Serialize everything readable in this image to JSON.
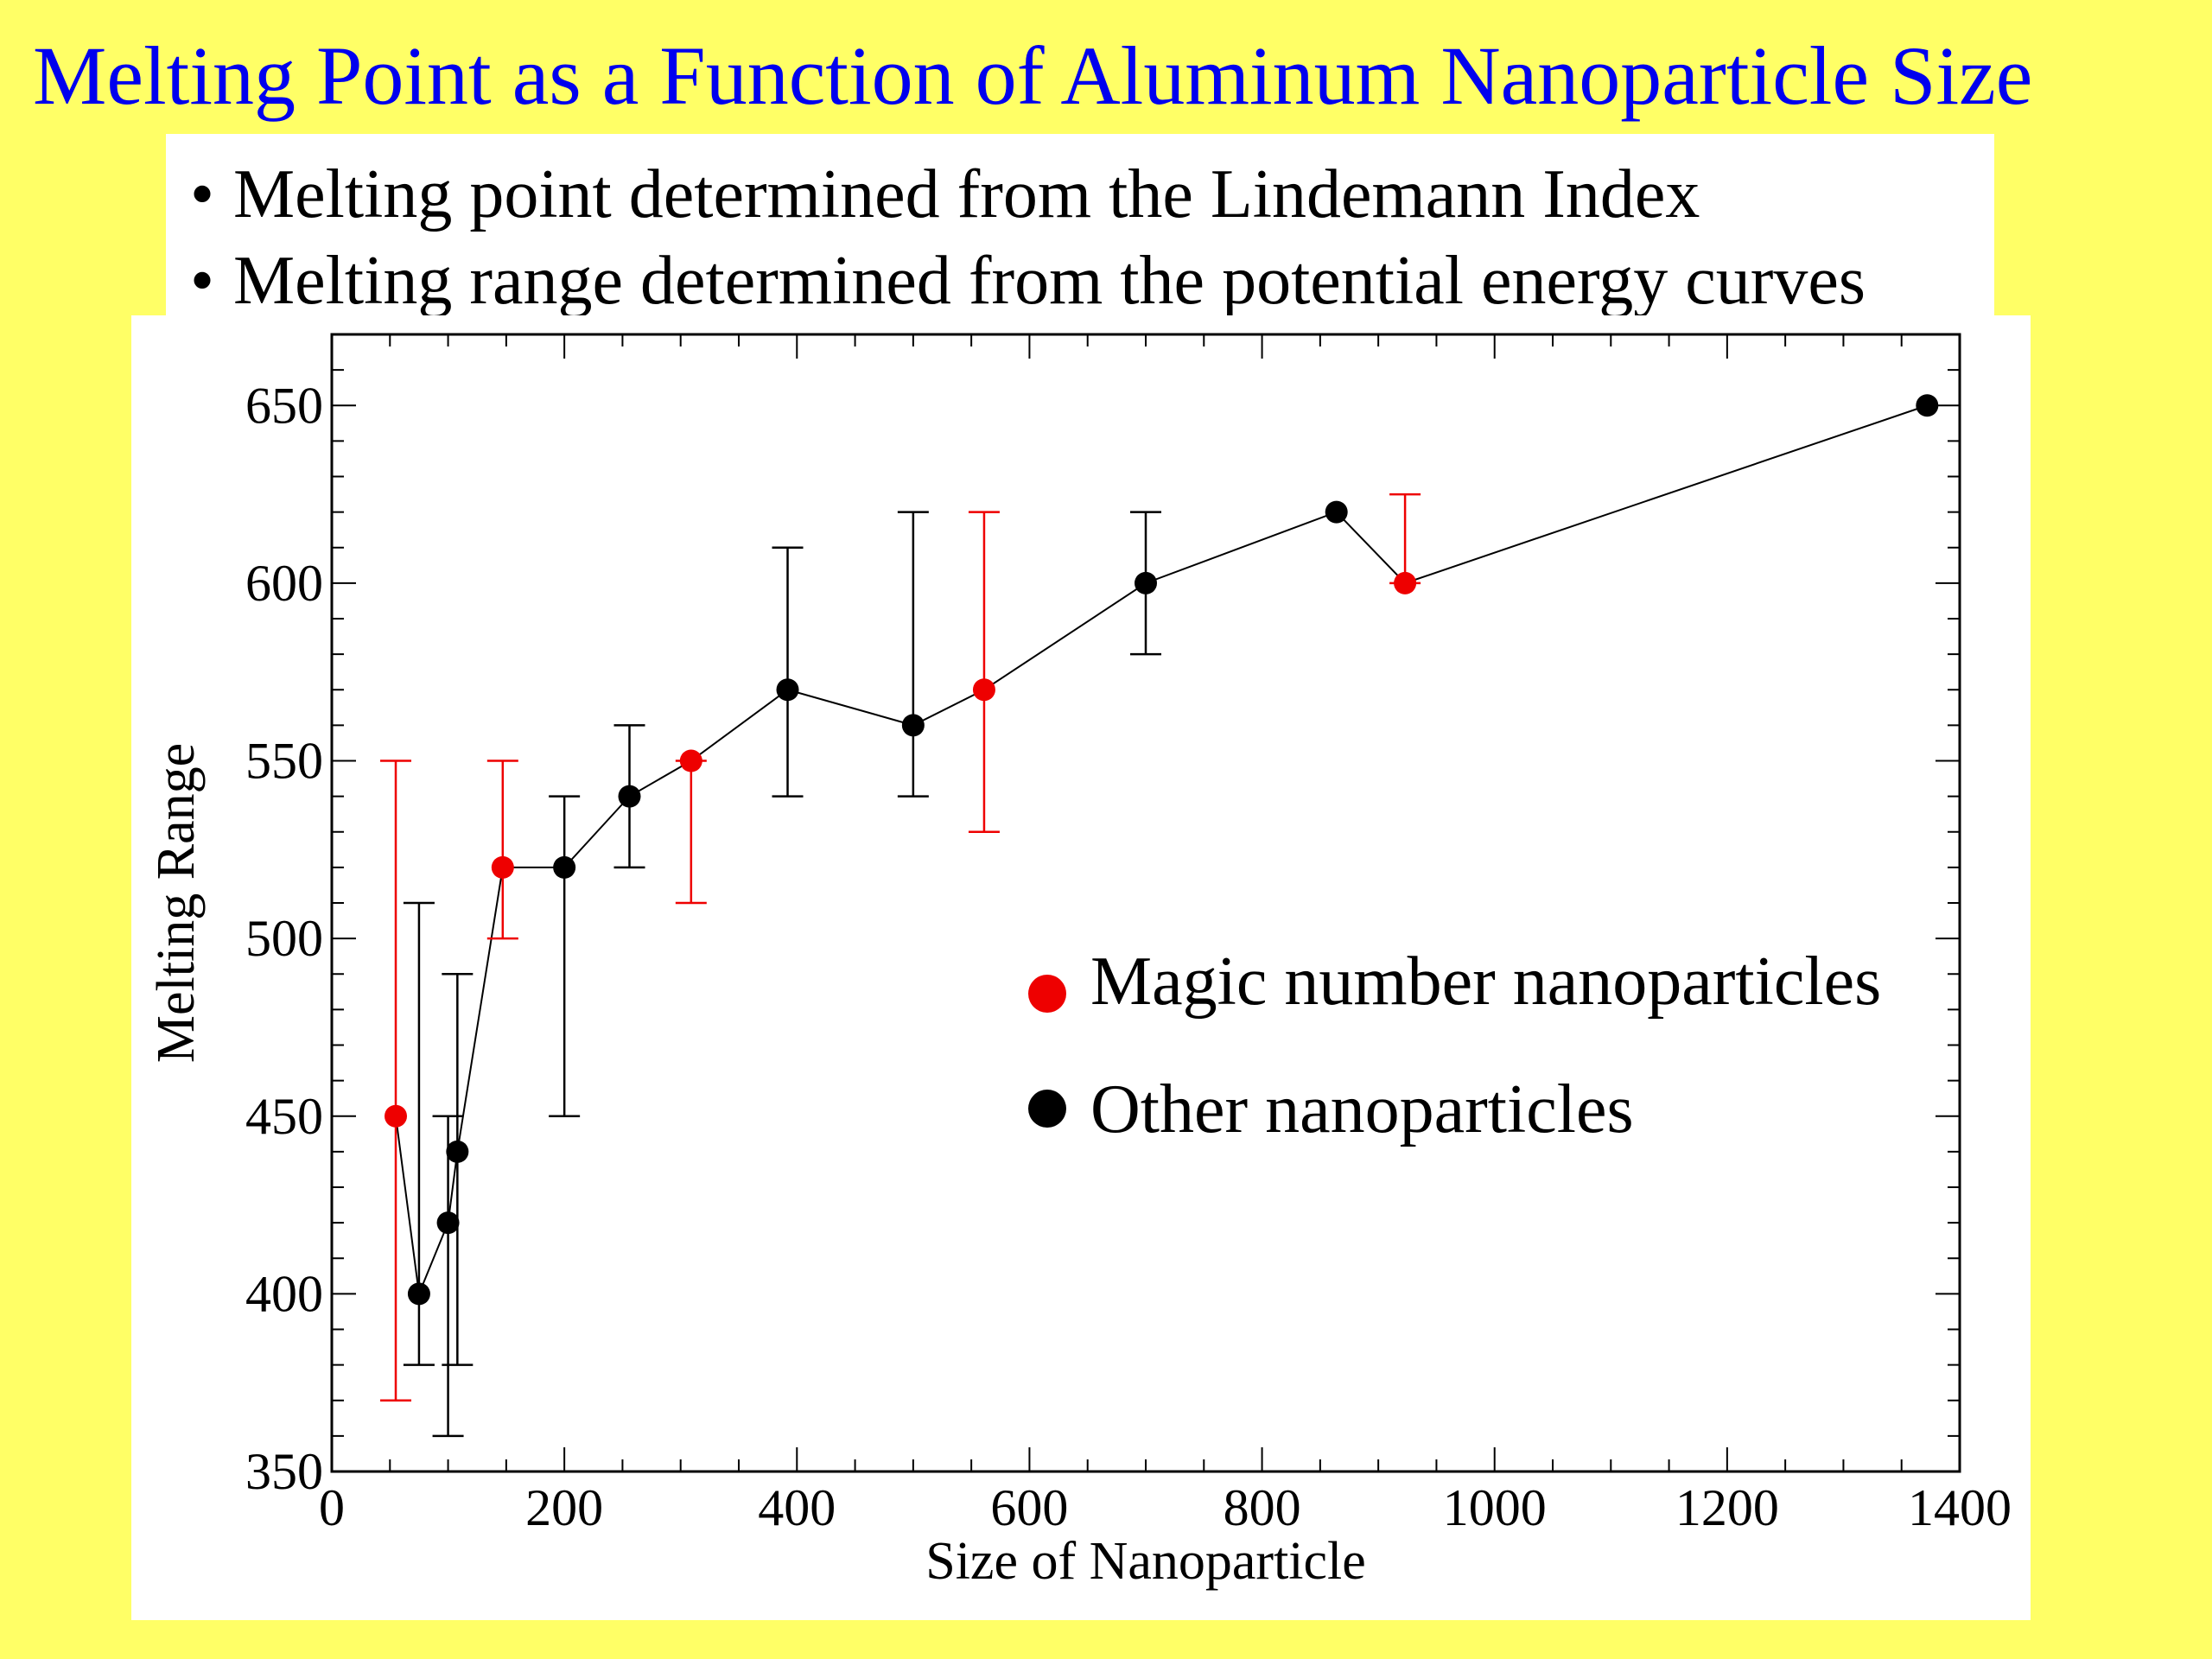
{
  "slide": {
    "title": "Melting Point as a Function of Aluminum Nanoparticle Size",
    "bullets": [
      "Melting point determined from the Lindemann Index",
      "Melting range determined from the potential energy curves"
    ],
    "bullet_symbol": "•"
  },
  "colors": {
    "background": "#ffff66",
    "title": "#0000ee",
    "magic": "#ee0000",
    "other": "#000000"
  },
  "chart_data": {
    "type": "scatter",
    "title": "",
    "xlabel": "Size of Nanoparticle",
    "ylabel": "Melting Range",
    "xlim": [
      0,
      1400
    ],
    "ylim": [
      350,
      670
    ],
    "xticks": [
      0,
      200,
      400,
      600,
      800,
      1000,
      1200,
      1400
    ],
    "yticks": [
      350,
      400,
      450,
      500,
      550,
      600,
      650
    ],
    "grid": false,
    "line_connecting_points": true,
    "legend_position": "right-center",
    "series": [
      {
        "name": "Magic number nanoparticles",
        "color": "#ee0000",
        "points": [
          {
            "x": 55,
            "y": 450,
            "ylow": 370,
            "yhigh": 550
          },
          {
            "x": 147,
            "y": 520,
            "ylow": 500,
            "yhigh": 550
          },
          {
            "x": 309,
            "y": 550,
            "ylow": 510,
            "yhigh": 550
          },
          {
            "x": 561,
            "y": 570,
            "ylow": 530,
            "yhigh": 620
          },
          {
            "x": 923,
            "y": 600,
            "ylow": 600,
            "yhigh": 625
          }
        ]
      },
      {
        "name": "Other nanoparticles",
        "color": "#000000",
        "points": [
          {
            "x": 75,
            "y": 400,
            "ylow": 380,
            "yhigh": 510
          },
          {
            "x": 100,
            "y": 420,
            "ylow": 360,
            "yhigh": 450
          },
          {
            "x": 108,
            "y": 440,
            "ylow": 380,
            "yhigh": 490
          },
          {
            "x": 200,
            "y": 520,
            "ylow": 450,
            "yhigh": 540
          },
          {
            "x": 256,
            "y": 540,
            "ylow": 520,
            "yhigh": 560
          },
          {
            "x": 392,
            "y": 570,
            "ylow": 540,
            "yhigh": 610
          },
          {
            "x": 500,
            "y": 560,
            "ylow": 540,
            "yhigh": 620
          },
          {
            "x": 700,
            "y": 600,
            "ylow": 580,
            "yhigh": 620
          },
          {
            "x": 864,
            "y": 620,
            "ylow": 620,
            "yhigh": 620
          },
          {
            "x": 1372,
            "y": 650,
            "ylow": 650,
            "yhigh": 650
          }
        ]
      }
    ]
  }
}
